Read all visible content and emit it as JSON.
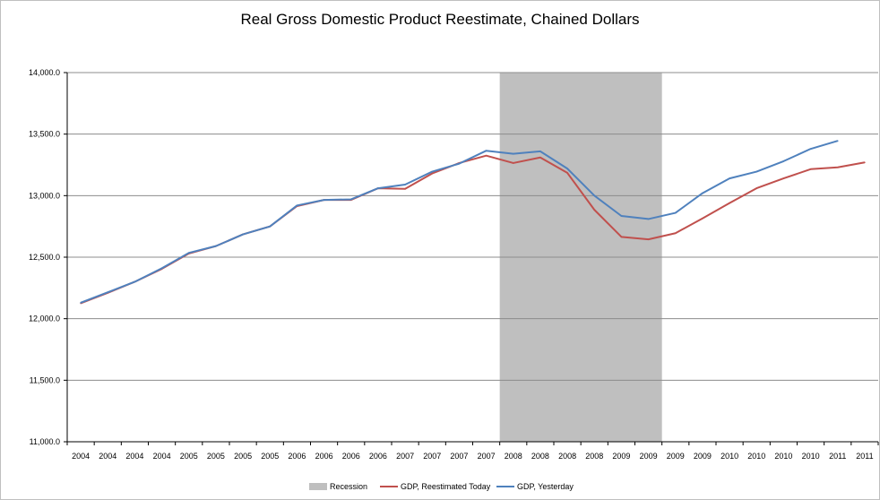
{
  "chart_data": {
    "type": "line",
    "title": "Real Gross Domestic Product Reestimate, Chained Dollars",
    "xlabel": "",
    "ylabel": "",
    "ylim": [
      11000,
      14000
    ],
    "yticks": [
      "11,000.0",
      "11,500.0",
      "12,000.0",
      "12,500.0",
      "13,000.0",
      "13,500.0",
      "14,000.0"
    ],
    "ytick_values": [
      11000,
      11500,
      12000,
      12500,
      13000,
      13500,
      14000
    ],
    "categories": [
      "2004",
      "2004",
      "2004",
      "2004",
      "2005",
      "2005",
      "2005",
      "2005",
      "2006",
      "2006",
      "2006",
      "2006",
      "2007",
      "2007",
      "2007",
      "2007",
      "2008",
      "2008",
      "2008",
      "2008",
      "2009",
      "2009",
      "2009",
      "2009",
      "2010",
      "2010",
      "2010",
      "2010",
      "2011",
      "2011"
    ],
    "grid": true,
    "legend_position": "bottom",
    "recession": {
      "name": "Recession",
      "start_index": 16,
      "end_index": 21,
      "color": "#bfbfbf"
    },
    "series": [
      {
        "name": "GDP, Reestimated Today",
        "color": "#c0504d",
        "values": [
          12125,
          12210,
          12300,
          12405,
          12530,
          12590,
          12685,
          12750,
          12915,
          12965,
          12965,
          13060,
          13055,
          13180,
          13265,
          13325,
          13265,
          13310,
          13185,
          12885,
          12665,
          12645,
          12695,
          12815,
          12940,
          13060,
          13140,
          13215,
          13230,
          13270
        ]
      },
      {
        "name": "GDP, Yesterday",
        "color": "#4f81bd",
        "values": [
          12130,
          12215,
          12300,
          12410,
          12535,
          12590,
          12685,
          12750,
          12920,
          12965,
          12970,
          13060,
          13090,
          13195,
          13260,
          13365,
          13340,
          13360,
          13220,
          13000,
          12835,
          12810,
          12860,
          13020,
          13140,
          13195,
          13280,
          13380,
          13445,
          null
        ]
      }
    ]
  }
}
